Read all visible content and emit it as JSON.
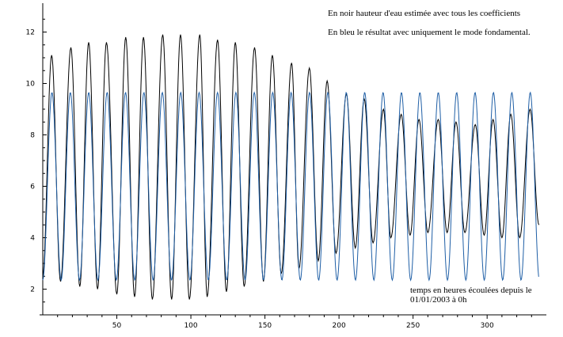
{
  "chart_data": {
    "type": "line",
    "title": "",
    "xlabel": "temps en heures écoulées depuis le 01/01/2003 à 0h",
    "ylabel": "",
    "xlim": [
      0,
      340
    ],
    "ylim": [
      1,
      13
    ],
    "x_ticks": [
      50,
      100,
      150,
      200,
      250,
      300
    ],
    "y_ticks": [
      2,
      4,
      6,
      8,
      10,
      12
    ],
    "grid": false,
    "annotations": {
      "black_note": "En noir hauteur d'eau estimée avec tous les coefficients",
      "blue_note": "En bleu le résultat avec uniquement le mode fondamental.",
      "xlabel_line1": "temps en heures écoulées depuis le",
      "xlabel_line2": "01/01/2003 à 0h"
    },
    "series": [
      {
        "color": "#000000",
        "x_range": [
          0,
          335
        ],
        "high_water_hours": [
          6,
          19,
          31,
          43,
          56,
          68,
          81,
          93,
          106,
          118,
          130,
          143,
          155,
          168,
          180,
          192,
          205,
          217,
          230,
          242,
          254,
          267,
          279,
          292,
          304,
          316,
          329
        ],
        "high_water_levels": [
          11.1,
          11.4,
          11.6,
          11.6,
          11.8,
          11.8,
          11.9,
          11.9,
          11.9,
          11.7,
          11.6,
          11.4,
          11.1,
          10.8,
          10.6,
          10.1,
          9.6,
          9.4,
          9.0,
          8.8,
          8.6,
          8.6,
          8.5,
          8.4,
          8.6,
          8.8,
          9.0
        ],
        "low_water_hours": [
          0,
          12,
          25,
          37,
          50,
          62,
          74,
          87,
          99,
          111,
          124,
          136,
          149,
          161,
          173,
          186,
          198,
          211,
          223,
          235,
          248,
          260,
          273,
          285,
          298,
          310,
          322,
          335
        ],
        "low_water_levels": [
          2.5,
          2.3,
          2.1,
          2.0,
          1.8,
          1.7,
          1.6,
          1.6,
          1.6,
          1.7,
          1.9,
          2.1,
          2.3,
          2.6,
          2.8,
          3.1,
          3.4,
          3.6,
          3.8,
          4.0,
          4.1,
          4.2,
          4.2,
          4.2,
          4.1,
          4.0,
          4.0,
          4.5
        ]
      },
      {
        "color": "#1f5fa6",
        "x_range": [
          0,
          335
        ],
        "mean": 6.0,
        "amplitude": 3.65,
        "period_hours": 12.42,
        "phase_hours": 6.2
      }
    ]
  }
}
